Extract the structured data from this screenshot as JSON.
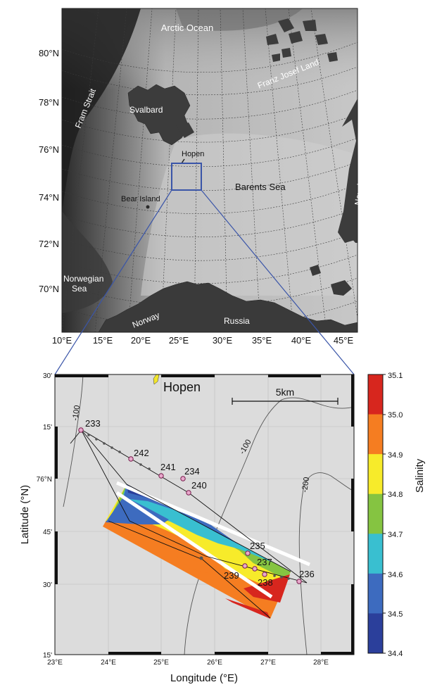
{
  "top_map": {
    "lat_labels": [
      "80°N",
      "78°N",
      "76°N",
      "74°N",
      "72°N",
      "70°N"
    ],
    "lon_labels": [
      "10°E",
      "15°E",
      "20°E",
      "25°E",
      "30°E",
      "35°E",
      "40°E",
      "45°E"
    ],
    "places": {
      "arctic_ocean": "Arctic Ocean",
      "fram_strait": "Fram Strait",
      "svalbard": "Svalbard",
      "franz_josef": "Franz Josef Land",
      "hopen": "Hopen",
      "bear_island": "Bear Island",
      "barents_sea": "Barents Sea",
      "novaja_zemlya": "Novaja Zemlya",
      "norwegian_sea_1": "Norwegian",
      "norwegian_sea_2": "Sea",
      "norway": "Norway",
      "russia": "Russia"
    }
  },
  "detail_map": {
    "title": "Hopen",
    "scale_bar": "5km",
    "lat_ticks": [
      "30'",
      "15'",
      "76°N",
      "45'",
      "30'",
      "15'"
    ],
    "lon_ticks": [
      "23°E",
      "24°E",
      "25°E",
      "26°E",
      "27°E",
      "28°E"
    ],
    "xlabel": "Longitude (°E)",
    "ylabel": "Latitude (°N)",
    "contours": [
      "-100",
      "-100",
      "-200"
    ],
    "stations": [
      "233",
      "242",
      "241",
      "234",
      "240",
      "235",
      "237",
      "236",
      "239",
      "238"
    ]
  },
  "colorbar": {
    "label": "Salinity",
    "ticks": [
      "35.1",
      "35.0",
      "34.9",
      "34.8",
      "34.7",
      "34.6",
      "34.5",
      "34.4"
    ],
    "colors": [
      "#d7261e",
      "#f57d21",
      "#f7eb2a",
      "#85c441",
      "#39bfd0",
      "#3d6bbf",
      "#2b3f9b"
    ]
  }
}
